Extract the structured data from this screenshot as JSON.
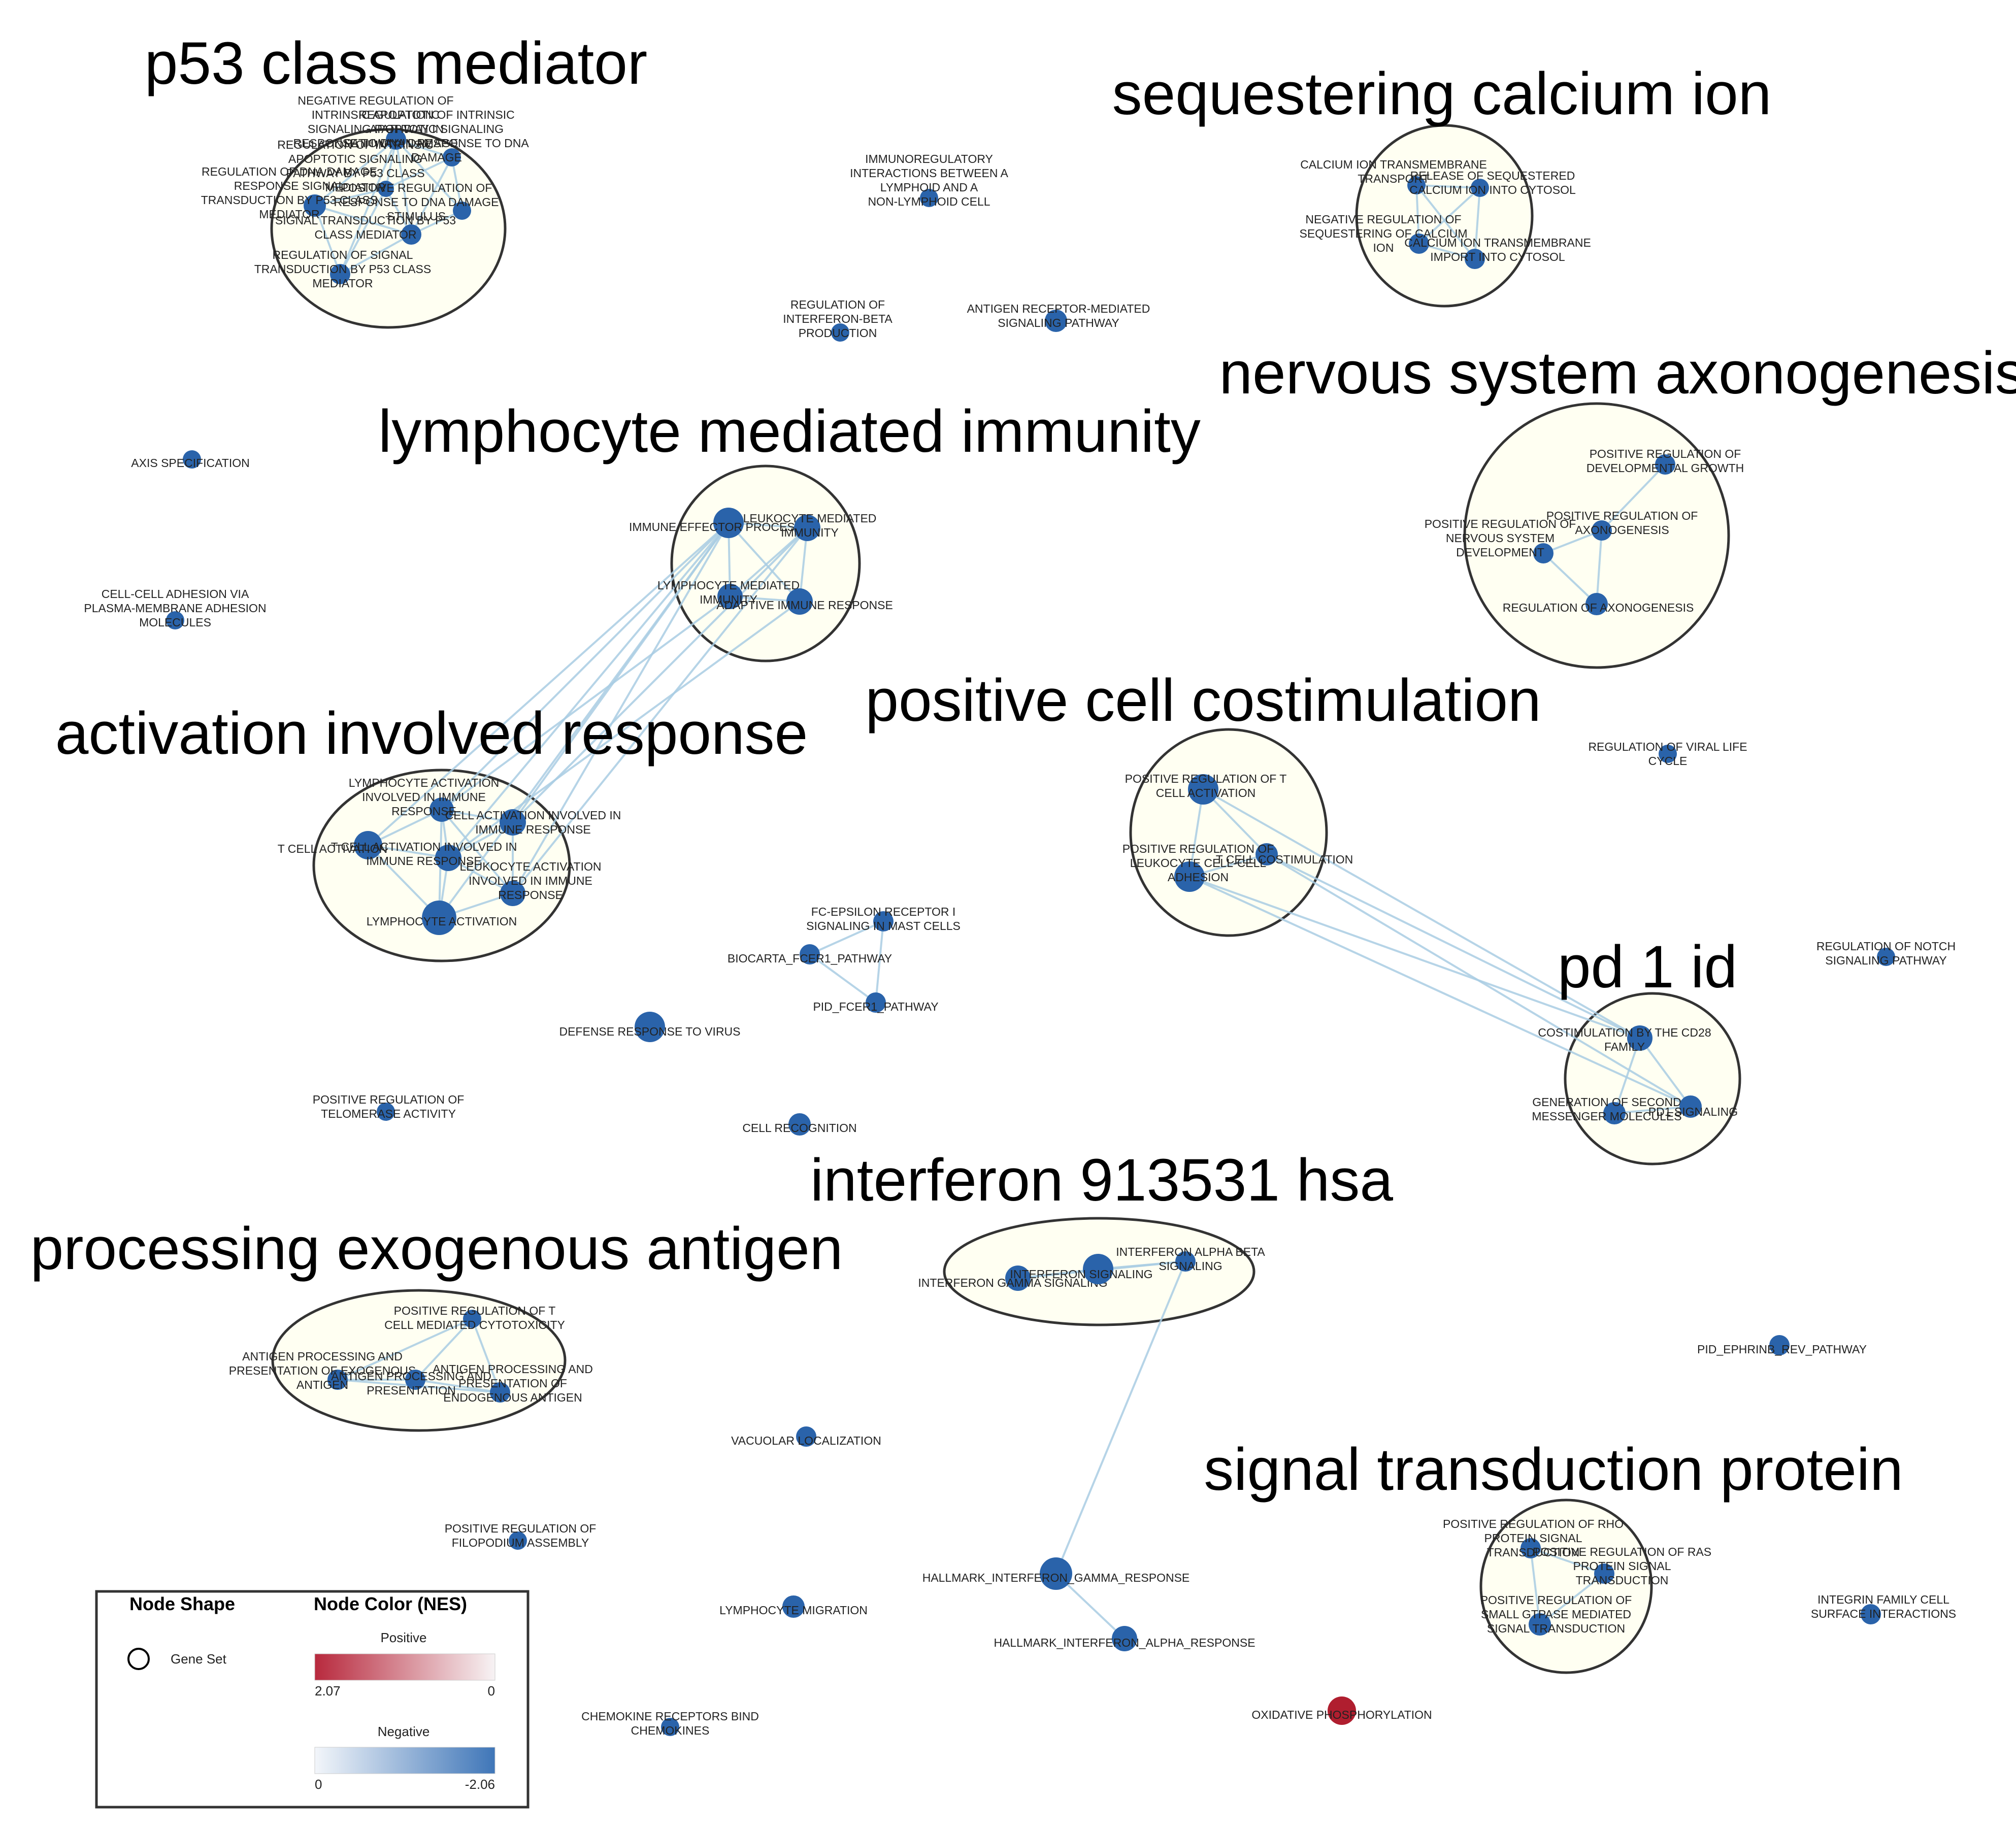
{
  "colors": {
    "negative_node": "#2a63aa",
    "positive_node": "#b01e2f",
    "edge": "#a9cde3",
    "cluster_fill": "#fffff2",
    "cluster_stroke": "#333333"
  },
  "clusters": [
    {
      "id": "c_p53",
      "title": "p53 class mediator"
    },
    {
      "id": "c_calcium",
      "title": "sequestering calcium ion"
    },
    {
      "id": "c_nervous",
      "title": "nervous system axonogenesis"
    },
    {
      "id": "c_lymph",
      "title": "lymphocyte mediated immunity"
    },
    {
      "id": "c_activation",
      "title": "activation involved response"
    },
    {
      "id": "c_costim",
      "title": "positive cell costimulation"
    },
    {
      "id": "c_pd1",
      "title": "pd 1 id"
    },
    {
      "id": "c_ifn",
      "title": "interferon 913531 hsa"
    },
    {
      "id": "c_exo",
      "title": "processing exogenous antigen"
    },
    {
      "id": "c_signal",
      "title": "signal transduction protein"
    }
  ],
  "nodes": [
    {
      "id": "n1",
      "label": [
        "NEGATIVE REGULATION OF",
        "INTRINSIC APOPTOTIC",
        "SIGNALING PATHWAY IN",
        "RESPONSE TO DNA DAMAGE"
      ],
      "color": "negative"
    },
    {
      "id": "n2",
      "label": [
        "REGULATION OF INTRINSIC",
        "APOPTOTIC SIGNALING",
        "PATHWAY IN RESPONSE TO DNA",
        "DAMAGE"
      ],
      "color": "negative"
    },
    {
      "id": "n3",
      "label": [
        "REGULATION OF INTRINSIC",
        "APOPTOTIC SIGNALING",
        "PATHWAY BY P53 CLASS",
        "MEDIATOR"
      ],
      "color": "negative"
    },
    {
      "id": "n4",
      "label": [
        "REGULATION OF DNA DAMAGE",
        "RESPONSE SIGNAL",
        "TRANSDUCTION BY P53 CLASS",
        "MEDIATOR"
      ],
      "color": "negative"
    },
    {
      "id": "n5",
      "label": [
        "POSITIVE REGULATION OF",
        "RESPONSE TO DNA DAMAGE",
        "STIMULUS"
      ],
      "color": "negative"
    },
    {
      "id": "n6",
      "label": [
        "SIGNAL TRANSDUCTION BY P53",
        "CLASS MEDIATOR"
      ],
      "color": "negative"
    },
    {
      "id": "n7",
      "label": [
        "REGULATION OF SIGNAL",
        "TRANSDUCTION BY P53 CLASS",
        "MEDIATOR"
      ],
      "color": "negative"
    },
    {
      "id": "n8",
      "label": [
        "IMMUNOREGULATORY",
        "INTERACTIONS BETWEEN A",
        "LYMPHOID AND A",
        "NON-LYMPHOID CELL"
      ],
      "color": "negative"
    },
    {
      "id": "n9",
      "label": [
        "REGULATION OF",
        "INTERFERON-BETA",
        "PRODUCTION"
      ],
      "color": "negative"
    },
    {
      "id": "n10",
      "label": [
        "ANTIGEN RECEPTOR-MEDIATED",
        "SIGNALING PATHWAY"
      ],
      "color": "negative"
    },
    {
      "id": "n11",
      "label": [
        "CALCIUM ION TRANSMEMBRANE",
        "TRANSPORT"
      ],
      "color": "negative"
    },
    {
      "id": "n12",
      "label": [
        "RELEASE OF SEQUESTERED",
        "CALCIUM ION INTO CYTOSOL"
      ],
      "color": "negative"
    },
    {
      "id": "n13",
      "label": [
        "NEGATIVE REGULATION OF",
        "SEQUESTERING OF CALCIUM",
        "ION"
      ],
      "color": "negative"
    },
    {
      "id": "n14",
      "label": [
        "CALCIUM ION TRANSMEMBRANE",
        "IMPORT INTO CYTOSOL"
      ],
      "color": "negative"
    },
    {
      "id": "n15",
      "label": [
        "POSITIVE REGULATION OF",
        "DEVELOPMENTAL GROWTH"
      ],
      "color": "negative"
    },
    {
      "id": "n16",
      "label": [
        "POSITIVE REGULATION OF",
        "AXONOGENESIS"
      ],
      "color": "negative"
    },
    {
      "id": "n17",
      "label": [
        "POSITIVE REGULATION OF",
        "NERVOUS SYSTEM",
        "DEVELOPMENT"
      ],
      "color": "negative"
    },
    {
      "id": "n18",
      "label": [
        "REGULATION OF AXONOGENESIS"
      ],
      "color": "negative"
    },
    {
      "id": "n19",
      "label": [
        "AXIS SPECIFICATION"
      ],
      "color": "negative"
    },
    {
      "id": "n20",
      "label": [
        "CELL-CELL ADHESION VIA",
        "PLASMA-MEMBRANE ADHESION",
        "MOLECULES"
      ],
      "color": "negative"
    },
    {
      "id": "n21",
      "label": [
        "IMMUNE EFFECTOR PROCESS"
      ],
      "color": "negative"
    },
    {
      "id": "n22",
      "label": [
        "LEUKOCYTE MEDIATED",
        "IMMUNITY"
      ],
      "color": "negative"
    },
    {
      "id": "n23",
      "label": [
        "LYMPHOCYTE MEDIATED",
        "IMMUNITY"
      ],
      "color": "negative"
    },
    {
      "id": "n24",
      "label": [
        "ADAPTIVE IMMUNE RESPONSE"
      ],
      "color": "negative"
    },
    {
      "id": "n25",
      "label": [
        "LYMPHOCYTE ACTIVATION",
        "INVOLVED IN IMMUNE",
        "RESPONSE"
      ],
      "color": "negative"
    },
    {
      "id": "n26",
      "label": [
        "CELL ACTIVATION INVOLVED IN",
        "IMMUNE RESPONSE"
      ],
      "color": "negative"
    },
    {
      "id": "n27",
      "label": [
        "T CELL ACTIVATION"
      ],
      "color": "negative"
    },
    {
      "id": "n28",
      "label": [
        "T CELL ACTIVATION INVOLVED IN",
        "IMMUNE RESPONSE"
      ],
      "color": "negative"
    },
    {
      "id": "n29",
      "label": [
        "LEUKOCYTE ACTIVATION",
        "INVOLVED IN IMMUNE",
        "RESPONSE"
      ],
      "color": "negative"
    },
    {
      "id": "n30",
      "label": [
        "LYMPHOCYTE ACTIVATION"
      ],
      "color": "negative"
    },
    {
      "id": "n31",
      "label": [
        "POSITIVE REGULATION OF T",
        "CELL ACTIVATION"
      ],
      "color": "negative"
    },
    {
      "id": "n32",
      "label": [
        "T CELL COSTIMULATION"
      ],
      "color": "negative"
    },
    {
      "id": "n33",
      "label": [
        "POSITIVE REGULATION OF",
        "LEUKOCYTE CELL-CELL",
        "ADHESION"
      ],
      "color": "negative"
    },
    {
      "id": "n34",
      "label": [
        "REGULATION OF VIRAL LIFE",
        "CYCLE"
      ],
      "color": "negative"
    },
    {
      "id": "n35",
      "label": [
        "FC-EPSILON RECEPTOR I",
        "SIGNALING IN MAST CELLS"
      ],
      "color": "negative"
    },
    {
      "id": "n36",
      "label": [
        "BIOCARTA_FCER1_PATHWAY"
      ],
      "color": "negative"
    },
    {
      "id": "n37",
      "label": [
        "PID_FCER1_PATHWAY"
      ],
      "color": "negative"
    },
    {
      "id": "n38",
      "label": [
        "DEFENSE RESPONSE TO VIRUS"
      ],
      "color": "negative"
    },
    {
      "id": "n39",
      "label": [
        "REGULATION OF NOTCH",
        "SIGNALING PATHWAY"
      ],
      "color": "negative"
    },
    {
      "id": "n40",
      "label": [
        "COSTIMULATION BY THE CD28",
        "FAMILY"
      ],
      "color": "negative"
    },
    {
      "id": "n41",
      "label": [
        "GENERATION OF SECOND",
        "MESSENGER MOLECULES"
      ],
      "color": "negative"
    },
    {
      "id": "n42",
      "label": [
        "PD1 SIGNALING"
      ],
      "color": "negative"
    },
    {
      "id": "n43",
      "label": [
        "POSITIVE REGULATION OF",
        "TELOMERASE ACTIVITY"
      ],
      "color": "negative"
    },
    {
      "id": "n44",
      "label": [
        "CELL RECOGNITION"
      ],
      "color": "negative"
    },
    {
      "id": "n45",
      "label": [
        "INTERFERON GAMMA SIGNALING"
      ],
      "color": "negative"
    },
    {
      "id": "n46",
      "label": [
        "INTERFERON SIGNALING"
      ],
      "color": "negative"
    },
    {
      "id": "n47",
      "label": [
        "INTERFERON ALPHA BETA",
        "SIGNALING"
      ],
      "color": "negative"
    },
    {
      "id": "n48",
      "label": [
        "POSITIVE REGULATION OF T",
        "CELL MEDIATED CYTOTOXICITY"
      ],
      "color": "negative"
    },
    {
      "id": "n49",
      "label": [
        "ANTIGEN PROCESSING AND",
        "PRESENTATION OF EXOGENOUS",
        "ANTIGEN"
      ],
      "color": "negative"
    },
    {
      "id": "n50",
      "label": [
        "ANTIGEN PROCESSING AND",
        "PRESENTATION"
      ],
      "color": "negative"
    },
    {
      "id": "n51",
      "label": [
        "ANTIGEN PROCESSING AND",
        "PRESENTATION OF",
        "ENDOGENOUS ANTIGEN"
      ],
      "color": "negative"
    },
    {
      "id": "n52",
      "label": [
        "PID_EPHRINB_REV_PATHWAY"
      ],
      "color": "negative"
    },
    {
      "id": "n53",
      "label": [
        "VACUOLAR LOCALIZATION"
      ],
      "color": "negative"
    },
    {
      "id": "n54",
      "label": [
        "POSITIVE REGULATION OF",
        "FILOPODIUM ASSEMBLY"
      ],
      "color": "negative"
    },
    {
      "id": "n55",
      "label": [
        "HALLMARK_INTERFERON_GAMMA_RESPONSE"
      ],
      "color": "negative"
    },
    {
      "id": "n56",
      "label": [
        "HALLMARK_INTERFERON_ALPHA_RESPONSE"
      ],
      "color": "negative"
    },
    {
      "id": "n57",
      "label": [
        "LYMPHOCYTE MIGRATION"
      ],
      "color": "negative"
    },
    {
      "id": "n58",
      "label": [
        "POSITIVE REGULATION OF RHO",
        "PROTEIN SIGNAL",
        "TRANSDUCTION"
      ],
      "color": "negative"
    },
    {
      "id": "n59",
      "label": [
        "POSITIVE REGULATION OF RAS",
        "PROTEIN SIGNAL",
        "TRANSDUCTION"
      ],
      "color": "negative"
    },
    {
      "id": "n60",
      "label": [
        "POSITIVE REGULATION OF",
        "SMALL GTPASE MEDIATED",
        "SIGNAL TRANSDUCTION"
      ],
      "color": "negative"
    },
    {
      "id": "n61",
      "label": [
        "INTEGRIN FAMILY CELL",
        "SURFACE INTERACTIONS"
      ],
      "color": "negative"
    },
    {
      "id": "n62",
      "label": [
        "OXIDATIVE PHOSPHORYLATION"
      ],
      "color": "positive"
    },
    {
      "id": "n63",
      "label": [
        "CHEMOKINE RECEPTORS BIND",
        "CHEMOKINES"
      ],
      "color": "negative"
    }
  ],
  "edges": [
    [
      "n1",
      "n2"
    ],
    [
      "n1",
      "n3"
    ],
    [
      "n1",
      "n4"
    ],
    [
      "n1",
      "n5"
    ],
    [
      "n1",
      "n6"
    ],
    [
      "n1",
      "n7"
    ],
    [
      "n2",
      "n3"
    ],
    [
      "n2",
      "n5"
    ],
    [
      "n3",
      "n4"
    ],
    [
      "n3",
      "n6"
    ],
    [
      "n3",
      "n7"
    ],
    [
      "n4",
      "n6"
    ],
    [
      "n4",
      "n7"
    ],
    [
      "n5",
      "n6"
    ],
    [
      "n6",
      "n7"
    ],
    [
      "n2",
      "n6"
    ],
    [
      "n11",
      "n12"
    ],
    [
      "n11",
      "n13"
    ],
    [
      "n11",
      "n14"
    ],
    [
      "n12",
      "n13"
    ],
    [
      "n12",
      "n14"
    ],
    [
      "n13",
      "n14"
    ],
    [
      "n15",
      "n16"
    ],
    [
      "n16",
      "n17"
    ],
    [
      "n16",
      "n18"
    ],
    [
      "n17",
      "n18"
    ],
    [
      "n21",
      "n22"
    ],
    [
      "n21",
      "n23"
    ],
    [
      "n21",
      "n24"
    ],
    [
      "n22",
      "n23"
    ],
    [
      "n22",
      "n24"
    ],
    [
      "n23",
      "n24"
    ],
    [
      "n21",
      "n25"
    ],
    [
      "n21",
      "n26"
    ],
    [
      "n21",
      "n27"
    ],
    [
      "n21",
      "n28"
    ],
    [
      "n21",
      "n29"
    ],
    [
      "n21",
      "n30"
    ],
    [
      "n22",
      "n26"
    ],
    [
      "n22",
      "n29"
    ],
    [
      "n23",
      "n25"
    ],
    [
      "n24",
      "n28"
    ],
    [
      "n25",
      "n26"
    ],
    [
      "n25",
      "n27"
    ],
    [
      "n25",
      "n28"
    ],
    [
      "n25",
      "n29"
    ],
    [
      "n25",
      "n30"
    ],
    [
      "n26",
      "n28"
    ],
    [
      "n26",
      "n29"
    ],
    [
      "n27",
      "n28"
    ],
    [
      "n27",
      "n30"
    ],
    [
      "n28",
      "n29"
    ],
    [
      "n28",
      "n30"
    ],
    [
      "n29",
      "n30"
    ],
    [
      "n31",
      "n32"
    ],
    [
      "n31",
      "n33"
    ],
    [
      "n32",
      "n33"
    ],
    [
      "n31",
      "n40"
    ],
    [
      "n32",
      "n40"
    ],
    [
      "n32",
      "n42"
    ],
    [
      "n33",
      "n42"
    ],
    [
      "n33",
      "n40"
    ],
    [
      "n40",
      "n41"
    ],
    [
      "n40",
      "n42"
    ],
    [
      "n41",
      "n42"
    ],
    [
      "n35",
      "n36"
    ],
    [
      "n35",
      "n37"
    ],
    [
      "n36",
      "n37"
    ],
    [
      "n45",
      "n46"
    ],
    [
      "n46",
      "n47"
    ],
    [
      "n45",
      "n47"
    ],
    [
      "n47",
      "n55"
    ],
    [
      "n55",
      "n56"
    ],
    [
      "n48",
      "n49"
    ],
    [
      "n48",
      "n50"
    ],
    [
      "n48",
      "n51"
    ],
    [
      "n49",
      "n50"
    ],
    [
      "n50",
      "n51"
    ],
    [
      "n49",
      "n51"
    ],
    [
      "n58",
      "n59"
    ],
    [
      "n58",
      "n60"
    ],
    [
      "n59",
      "n60"
    ]
  ],
  "legend": {
    "shape_heading": "Node Shape",
    "shape_item": "Gene Set",
    "color_heading": "Node Color (NES)",
    "positive_label": "Positive",
    "positive_max": "2.07",
    "positive_min": "0",
    "negative_label": "Negative",
    "negative_min": "0",
    "negative_max": "-2.06"
  }
}
